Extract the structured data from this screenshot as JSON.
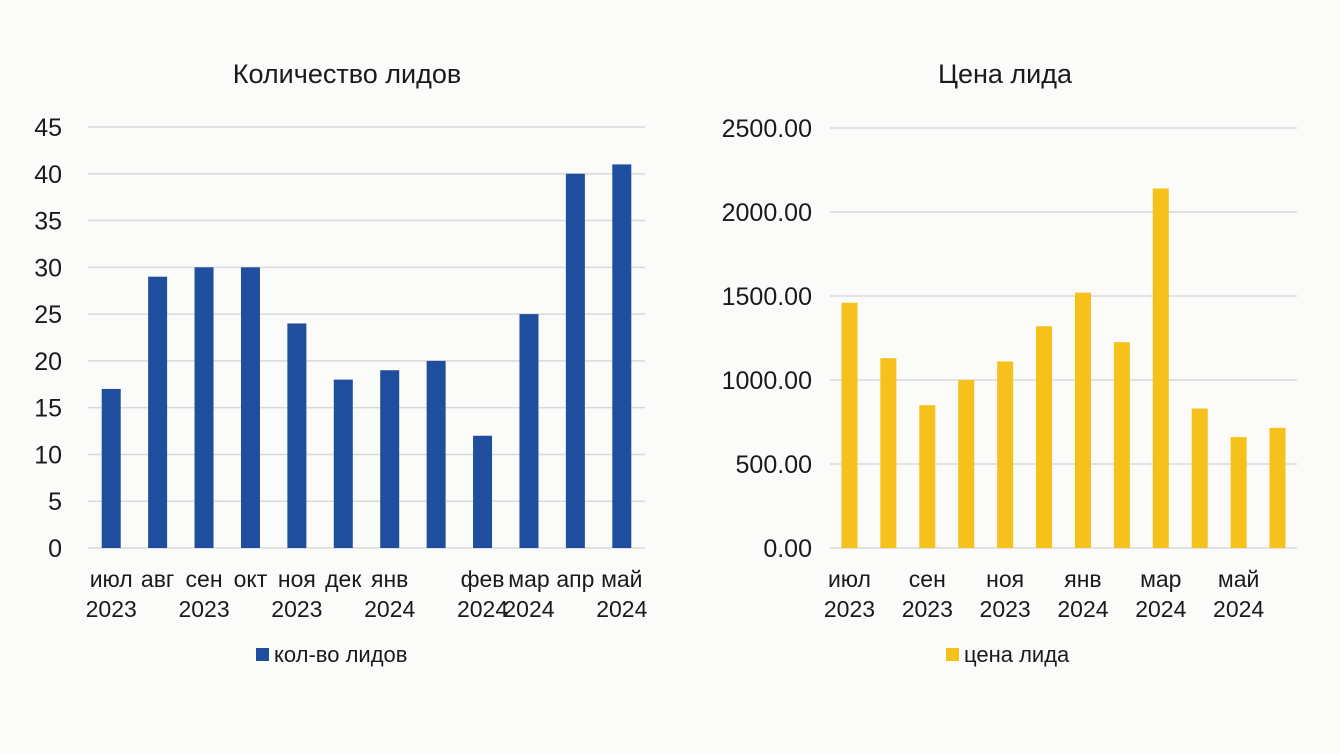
{
  "chart_data": [
    {
      "type": "bar",
      "title": "Количество лидов",
      "categories": [
        [
          "июл",
          "2023"
        ],
        [
          "авг",
          ""
        ],
        [
          "сен",
          "2023"
        ],
        [
          "окт",
          ""
        ],
        [
          "ноя",
          "2023"
        ],
        [
          "дек",
          ""
        ],
        [
          "янв",
          "2024"
        ],
        [
          "",
          ""
        ],
        [
          "фев",
          "2024"
        ],
        [
          "мар",
          "2024"
        ],
        [
          "апр",
          ""
        ],
        [
          "май",
          "2024"
        ]
      ],
      "series": [
        {
          "name": "кол-во лидов",
          "color": "#1f4e9e",
          "values": [
            17,
            29,
            30,
            30,
            24,
            18,
            19,
            20,
            12,
            25,
            40,
            41
          ]
        }
      ],
      "ylim": [
        0,
        45
      ],
      "yticks": [
        "0",
        "5",
        "10",
        "15",
        "20",
        "25",
        "30",
        "35",
        "40",
        "45"
      ],
      "grid": true,
      "legend": "bottom"
    },
    {
      "type": "bar",
      "title": "Цена лида",
      "categories": [
        [
          "июл",
          "2023"
        ],
        [
          "",
          ""
        ],
        [
          "сен",
          "2023"
        ],
        [
          "",
          ""
        ],
        [
          "ноя",
          "2023"
        ],
        [
          "",
          ""
        ],
        [
          "янв",
          "2024"
        ],
        [
          "",
          ""
        ],
        [
          "мар",
          "2024"
        ],
        [
          "",
          ""
        ],
        [
          "май",
          "2024"
        ],
        [
          "",
          ""
        ]
      ],
      "series": [
        {
          "name": "цена лида",
          "color": "#f5c11a",
          "values": [
            1460,
            1130,
            850,
            1000,
            1110,
            1320,
            1520,
            1225,
            2140,
            830,
            660,
            715
          ]
        }
      ],
      "ylim": [
        0,
        2500
      ],
      "yticks": [
        "0.00",
        "500.00",
        "1000.00",
        "1500.00",
        "2000.00",
        "2500.00"
      ],
      "grid": true,
      "legend": "bottom"
    }
  ]
}
